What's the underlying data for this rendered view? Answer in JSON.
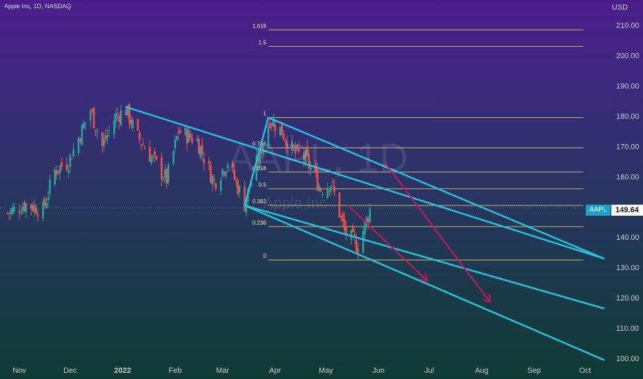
{
  "header": {
    "symbol_line": "Apple Inc, 1D, NASDAQ",
    "currency": "USD"
  },
  "watermark": {
    "ticker": "AAPL, 1D",
    "name": "Apple Inc"
  },
  "last_price": {
    "symbol": "AAPL",
    "value": "149.64",
    "number": 149.64
  },
  "colors": {
    "up_candle": "#26a69a",
    "down_candle": "#ef5350",
    "channel_lines": "#22c4dd",
    "fib_lines": "#c9bf6a",
    "arrow": "#c2185b",
    "axis_text": "#c9cfdc"
  },
  "chart_data": {
    "type": "candlestick",
    "title": "Apple Inc, 1D, NASDAQ",
    "ylabel": "USD",
    "ylim": [
      100,
      215
    ],
    "y_ticks": [
      {
        "value": 210,
        "label": "210.00"
      },
      {
        "value": 200,
        "label": "200.00"
      },
      {
        "value": 190,
        "label": "190.00"
      },
      {
        "value": 180,
        "label": "180.00"
      },
      {
        "value": 170,
        "label": "170.00"
      },
      {
        "value": 160,
        "label": "160.00"
      },
      {
        "value": 150,
        "label": "150.00"
      },
      {
        "value": 140,
        "label": "140.00"
      },
      {
        "value": 130,
        "label": "130.00"
      },
      {
        "value": 120,
        "label": "120.00"
      },
      {
        "value": 110,
        "label": "110.00"
      },
      {
        "value": 100,
        "label": "100.00"
      }
    ],
    "x_ticks": [
      {
        "date": "2021-11-01",
        "label": "Nov"
      },
      {
        "date": "2021-12-01",
        "label": "Dec"
      },
      {
        "date": "2022-01-01",
        "label": "2022"
      },
      {
        "date": "2022-02-01",
        "label": "Feb"
      },
      {
        "date": "2022-03-01",
        "label": "Mar"
      },
      {
        "date": "2022-04-01",
        "label": "Apr"
      },
      {
        "date": "2022-05-01",
        "label": "May"
      },
      {
        "date": "2022-06-01",
        "label": "Jun"
      },
      {
        "date": "2022-07-01",
        "label": "Jul"
      },
      {
        "date": "2022-08-01",
        "label": "Aug"
      },
      {
        "date": "2022-09-01",
        "label": "Sep"
      },
      {
        "date": "2022-10-01",
        "label": "Oct"
      }
    ],
    "price_path": [
      {
        "date": "2021-10-25",
        "close": 148
      },
      {
        "date": "2021-11-05",
        "close": 151
      },
      {
        "date": "2021-11-15",
        "close": 149
      },
      {
        "date": "2021-11-22",
        "close": 162
      },
      {
        "date": "2021-11-30",
        "close": 165
      },
      {
        "date": "2021-12-13",
        "close": 182
      },
      {
        "date": "2021-12-20",
        "close": 170
      },
      {
        "date": "2021-12-28",
        "close": 180
      },
      {
        "date": "2022-01-03",
        "close": 182
      },
      {
        "date": "2022-01-10",
        "close": 173
      },
      {
        "date": "2022-01-27",
        "close": 159
      },
      {
        "date": "2022-02-03",
        "close": 175
      },
      {
        "date": "2022-02-14",
        "close": 172
      },
      {
        "date": "2022-02-24",
        "close": 158
      },
      {
        "date": "2022-03-04",
        "close": 165
      },
      {
        "date": "2022-03-14",
        "close": 151
      },
      {
        "date": "2022-03-29",
        "close": 179
      },
      {
        "date": "2022-04-05",
        "close": 175
      },
      {
        "date": "2022-04-12",
        "close": 168
      },
      {
        "date": "2022-04-19",
        "close": 166
      },
      {
        "date": "2022-04-28",
        "close": 156
      },
      {
        "date": "2022-05-04",
        "close": 158
      },
      {
        "date": "2022-05-12",
        "close": 142
      },
      {
        "date": "2022-05-20",
        "close": 137
      },
      {
        "date": "2022-05-27",
        "close": 149
      }
    ],
    "fibonacci": {
      "levels": [
        {
          "label": "1.618",
          "value": 208.5
        },
        {
          "label": "1.5",
          "value": 203
        },
        {
          "label": "1",
          "value": 179.5
        },
        {
          "label": "0.786",
          "value": 169.5
        },
        {
          "label": "0.618",
          "value": 161.5
        },
        {
          "label": "0.5",
          "value": 156
        },
        {
          "label": "0.382",
          "value": 150.5
        },
        {
          "label": "0.236",
          "value": 143.5
        },
        {
          "label": "0",
          "value": 132.5
        }
      ],
      "start_date": "2022-03-28",
      "end_date": "2022-09-30"
    },
    "channel": [
      {
        "name": "upper",
        "start": {
          "date": "2022-01-03",
          "price": 183
        },
        "end": {
          "date": "2022-10-12",
          "price": 133
        }
      },
      {
        "name": "middle",
        "start": {
          "date": "2022-03-14",
          "price": 150.5
        },
        "end": {
          "date": "2022-10-12",
          "price": 116.5
        }
      },
      {
        "name": "lower",
        "start": {
          "date": "2022-03-14",
          "price": 150.5
        },
        "end": {
          "date": "2022-10-12",
          "price": 99.5
        }
      },
      {
        "name": "swing",
        "start": {
          "date": "2022-03-14",
          "price": 150.5
        },
        "end": {
          "date": "2022-03-28",
          "price": 179.5
        }
      }
    ],
    "channel_right": [
      {
        "start": {
          "date": "2022-03-28",
          "price": 179.5
        },
        "end": {
          "date": "2022-10-12",
          "price": 133
        }
      }
    ],
    "projection_arrows": [
      {
        "start": {
          "date": "2022-05-14",
          "price": 150.5
        },
        "end": {
          "date": "2022-06-30",
          "price": 125.5
        }
      },
      {
        "start": {
          "date": "2022-06-05",
          "price": 164.5
        },
        "end": {
          "date": "2022-08-06",
          "price": 118.5
        }
      }
    ]
  }
}
